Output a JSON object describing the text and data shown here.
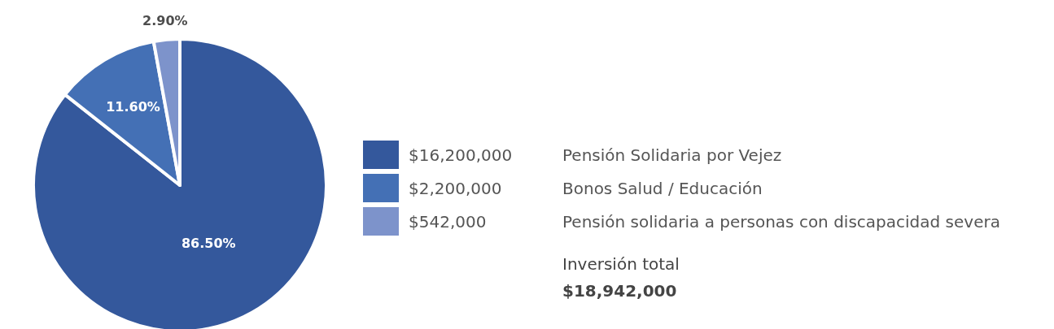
{
  "chart_data": {
    "type": "pie",
    "categories": [
      "$16,200,000",
      "$2,200,000",
      "$542,000"
    ],
    "values": [
      86.5,
      11.6,
      2.9
    ],
    "colors": [
      "#34589c",
      "#4470b5",
      "#7d93cb"
    ],
    "value_labels": [
      "86.50%",
      "11.60%",
      "2.90%"
    ],
    "legend": "right",
    "annotations": [
      "Pensión Solidaria por Vejez",
      "Bonos Salud / Educación",
      "Pensión solidaria a personas con discapacidad severa",
      "Inversión total",
      "$18,942,000"
    ]
  }
}
